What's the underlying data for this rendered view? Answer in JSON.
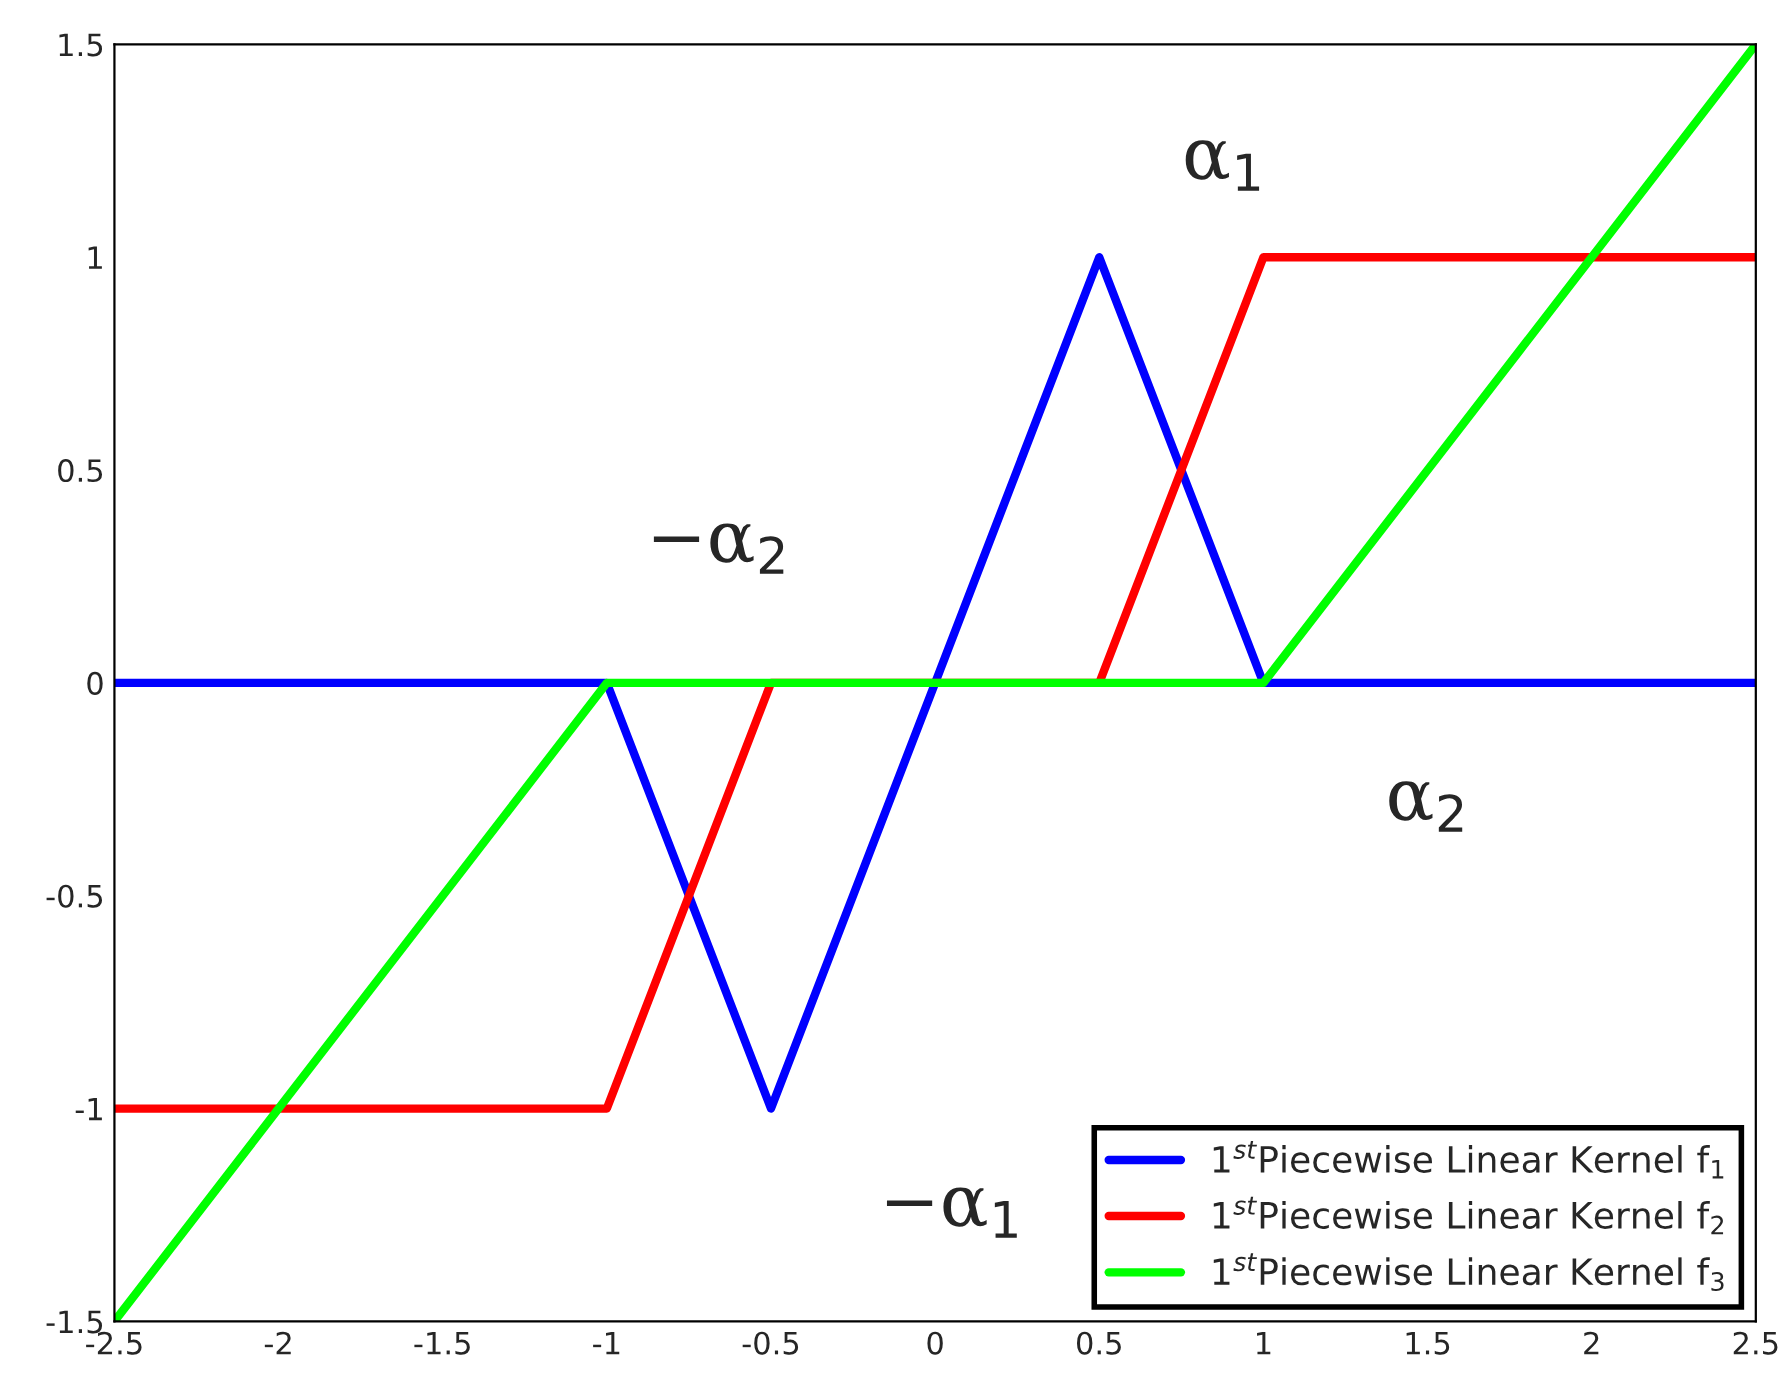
{
  "chart_data": {
    "type": "line",
    "series": [
      {
        "name": "1$^{st}$Piecewise Linear Kernel f$_{1}$",
        "color": "#0000ff",
        "x": [
          -2.5,
          -1,
          -0.5,
          0,
          0.5,
          1,
          2.5
        ],
        "values": [
          0,
          0,
          -1,
          0,
          1,
          0,
          0
        ]
      },
      {
        "name": "1$^{st}$Piecewise Linear Kernel f$_{2}$",
        "color": "#ff0000",
        "x": [
          -2.5,
          -1,
          -0.5,
          0.5,
          1,
          2.5
        ],
        "values": [
          -1,
          -1,
          0,
          0,
          1,
          1
        ]
      },
      {
        "name": "1$^{st}$Piecewise Linear Kernel f$_{3}$",
        "color": "#00ff00",
        "x": [
          -2.5,
          -1,
          1,
          2.5
        ],
        "values": [
          -1.5,
          0,
          0,
          1.5
        ]
      }
    ],
    "annotations": [
      "α$_{1}$",
      "−α$_{2}$",
      "α$_{2}$",
      "−α$_{1}$"
    ],
    "xlim": [
      -2.5,
      2.5
    ],
    "xticks": [
      -2.5,
      -2,
      -1.5,
      -1,
      -0.5,
      0,
      0.5,
      1,
      1.5,
      2,
      2.5
    ],
    "ylim": [
      -1.5,
      1.5
    ],
    "yticks": [
      -1.5,
      -1,
      -0.5,
      0,
      0.5,
      1,
      1.5
    ],
    "legend": "bottom right",
    "grid": false,
    "line_style": "solid",
    "marker": "none"
  }
}
